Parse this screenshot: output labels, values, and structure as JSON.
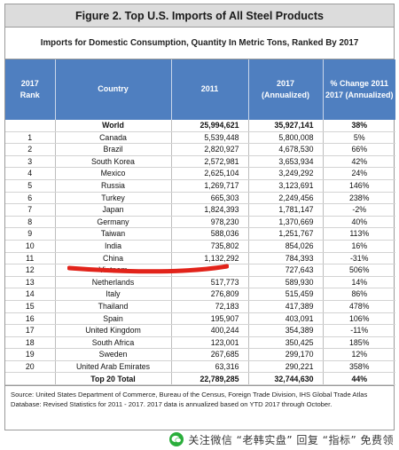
{
  "figure": {
    "title": "Figure 2. Top U.S. Imports of All Steel Products",
    "subtitle": "Imports for Domestic Consumption, Quantity In Metric Tons, Ranked By 2017"
  },
  "table": {
    "headers": {
      "rank_line1": "2017",
      "rank_line2": "Rank",
      "country": "Country",
      "y2011": "2011",
      "y2017_line1": "2017",
      "y2017_line2": "(Annualized)",
      "pct_line1": "% Change 2011",
      "pct_line2": "2017 (Annualized)"
    },
    "world": {
      "rank": "",
      "country": "World",
      "v2011": "25,994,621",
      "v2017": "35,927,141",
      "pct": "38%"
    },
    "rows": [
      {
        "rank": "1",
        "country": "Canada",
        "v2011": "5,539,448",
        "v2017": "5,800,008",
        "pct": "5%"
      },
      {
        "rank": "2",
        "country": "Brazil",
        "v2011": "2,820,927",
        "v2017": "4,678,530",
        "pct": "66%"
      },
      {
        "rank": "3",
        "country": "South Korea",
        "v2011": "2,572,981",
        "v2017": "3,653,934",
        "pct": "42%"
      },
      {
        "rank": "4",
        "country": "Mexico",
        "v2011": "2,625,104",
        "v2017": "3,249,292",
        "pct": "24%"
      },
      {
        "rank": "5",
        "country": "Russia",
        "v2011": "1,269,717",
        "v2017": "3,123,691",
        "pct": "146%"
      },
      {
        "rank": "6",
        "country": "Turkey",
        "v2011": "665,303",
        "v2017": "2,249,456",
        "pct": "238%"
      },
      {
        "rank": "7",
        "country": "Japan",
        "v2011": "1,824,393",
        "v2017": "1,781,147",
        "pct": "-2%"
      },
      {
        "rank": "8",
        "country": "Germany",
        "v2011": "978,230",
        "v2017": "1,370,669",
        "pct": "40%"
      },
      {
        "rank": "9",
        "country": "Taiwan",
        "v2011": "588,036",
        "v2017": "1,251,767",
        "pct": "113%"
      },
      {
        "rank": "10",
        "country": "India",
        "v2011": "735,802",
        "v2017": "854,026",
        "pct": "16%"
      },
      {
        "rank": "11",
        "country": "China",
        "v2011": "1,132,292",
        "v2017": "784,393",
        "pct": "-31%"
      },
      {
        "rank": "12",
        "country": "Vietnam",
        "v2011": "",
        "v2017": "727,643",
        "pct": "506%"
      },
      {
        "rank": "13",
        "country": "Netherlands",
        "v2011": "517,773",
        "v2017": "589,930",
        "pct": "14%"
      },
      {
        "rank": "14",
        "country": "Italy",
        "v2011": "276,809",
        "v2017": "515,459",
        "pct": "86%"
      },
      {
        "rank": "15",
        "country": "Thailand",
        "v2011": "72,183",
        "v2017": "417,389",
        "pct": "478%"
      },
      {
        "rank": "16",
        "country": "Spain",
        "v2011": "195,907",
        "v2017": "403,091",
        "pct": "106%"
      },
      {
        "rank": "17",
        "country": "United Kingdom",
        "v2011": "400,244",
        "v2017": "354,389",
        "pct": "-11%"
      },
      {
        "rank": "18",
        "country": "South Africa",
        "v2011": "123,001",
        "v2017": "350,425",
        "pct": "185%"
      },
      {
        "rank": "19",
        "country": "Sweden",
        "v2011": "267,685",
        "v2017": "299,170",
        "pct": "12%"
      },
      {
        "rank": "20",
        "country": "United Arab Emirates",
        "v2011": "63,316",
        "v2017": "290,221",
        "pct": "358%"
      }
    ],
    "total": {
      "rank": "",
      "country": "Top 20 Total",
      "v2011": "22,789,285",
      "v2017": "32,744,630",
      "pct": "44%"
    }
  },
  "source": "Source: United States Department of Commerce, Bureau of the Census, Foreign Trade Division, IHS Global Trade Atlas Database: Revised Statistics for 2011 - 2017.  2017 data is annualized based on YTD 2017 through October.",
  "watermark": {
    "text": "关注微信 “老韩实盘” 回复 “指标” 免费领",
    "icon": "wechat-icon"
  },
  "colors": {
    "header_blue": "#4f7fc0",
    "title_gray": "#dcdcdc",
    "underline_red": "#e2231a",
    "wechat_green": "#2aae3b"
  }
}
